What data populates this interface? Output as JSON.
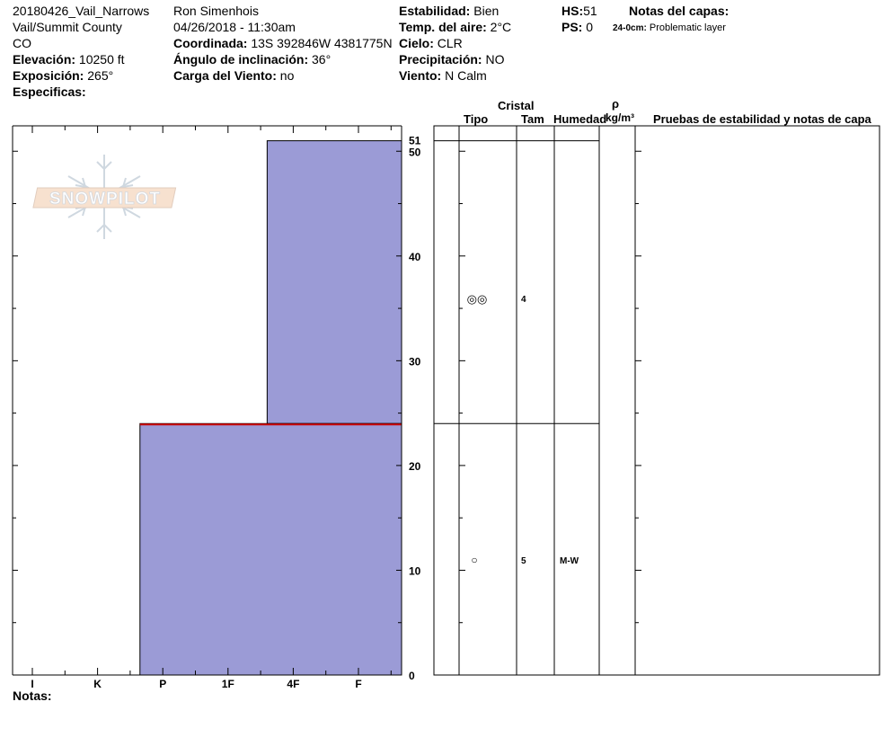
{
  "header": {
    "col1": {
      "line1": "20180426_Vail_Narrows",
      "line2": "Vail/Summit County",
      "line3": "CO",
      "elevation_label": "Elevación:",
      "elevation_value": "10250 ft",
      "exposure_label": "Exposición:",
      "exposure_value": "265°",
      "specifics_label": "Especificas:"
    },
    "col2": {
      "observer": "Ron Simenhois",
      "datetime": "04/26/2018 - 11:30am",
      "coord_label": "Coordinada:",
      "coord_value": "13S 392846W 4381775N",
      "slope_label": "Ángulo de inclinación:",
      "slope_value": "36°",
      "wind_load_label": "Carga del Viento:",
      "wind_load_value": "no"
    },
    "col3": {
      "stability_label": "Estabilidad:",
      "stability_value": "Bien",
      "air_temp_label": "Temp. del aire:",
      "air_temp_value": "2°C",
      "sky_label": "Cielo:",
      "sky_value": "CLR",
      "precip_label": "Precipitación:",
      "precip_value": "NO",
      "wind_label": "Viento:",
      "wind_value": "N Calm"
    },
    "col4": {
      "hs_label": "HS:",
      "hs_value": "51",
      "ps_label": "PS:",
      "ps_value": "0"
    },
    "layer_notes": {
      "title": "Notas del capas:",
      "entry_depth": "24-0cm:",
      "entry_text": "Problematic layer"
    }
  },
  "table_headers": {
    "cristal": "Cristal",
    "tipo": "Tipo",
    "tam": "Tam",
    "humedad": "Humedad",
    "rho": "ρ",
    "density_unit": "kg/m³",
    "tests": "Pruebas de estabilidad y notas de capa"
  },
  "notes_label": "Notas:",
  "logo_text": "SNOWPILOT",
  "colors": {
    "layer_fill": "#9b9bd6",
    "weak_line": "#cc0000"
  },
  "chart_data": {
    "type": "bar",
    "orientation": "horizontal",
    "x_categories": [
      "I",
      "K",
      "P",
      "1F",
      "4F",
      "F"
    ],
    "y_ticks": [
      0,
      10,
      20,
      30,
      40,
      50
    ],
    "y_top_label": "51",
    "ylim": [
      0,
      51
    ],
    "layers": [
      {
        "bottom": 24,
        "top": 51,
        "hardness_index": 3.6,
        "grain_symbol": "◎◎",
        "grain_size": "4",
        "moisture": ""
      },
      {
        "bottom": 0,
        "top": 24,
        "hardness_index": 1.65,
        "grain_symbol": "○",
        "grain_size": "5",
        "moisture": "M-W"
      }
    ],
    "weak_interface_depth": 24
  }
}
